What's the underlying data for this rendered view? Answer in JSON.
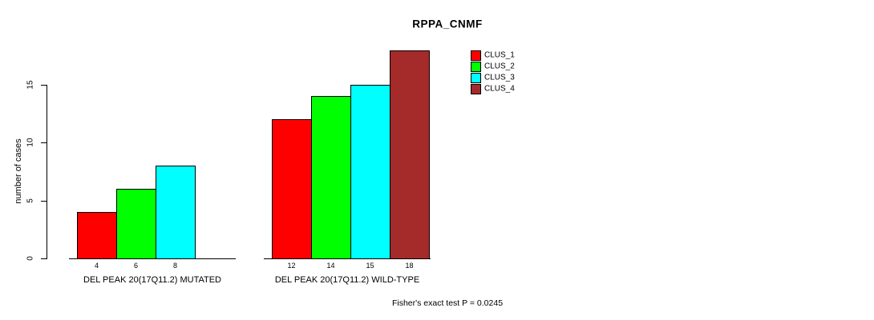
{
  "chart_data": {
    "type": "bar",
    "title": "RPPA_CNMF",
    "ylabel": "number of cases",
    "xlabel": "",
    "yticks": [
      0,
      5,
      10,
      15
    ],
    "ylim": [
      0,
      18
    ],
    "grid": false,
    "legend_position": "right",
    "legend": [
      {
        "name": "CLUS_1",
        "color": "#FF0000"
      },
      {
        "name": "CLUS_2",
        "color": "#00FF00"
      },
      {
        "name": "CLUS_3",
        "color": "#00FFFF"
      },
      {
        "name": "CLUS_4",
        "color": "#A52A2A"
      }
    ],
    "groups": [
      {
        "label": "DEL PEAK 20(17Q11.2) MUTATED",
        "values": [
          4,
          6,
          8,
          0
        ]
      },
      {
        "label": "DEL PEAK 20(17Q11.2) WILD-TYPE",
        "values": [
          12,
          14,
          15,
          18
        ]
      }
    ],
    "bar_value_labels_shown": true,
    "annotation": "Fisher's exact test P = 0.0245"
  },
  "colors": {
    "background": "#FFFFFF",
    "axis": "#000000",
    "text": "#000000"
  }
}
